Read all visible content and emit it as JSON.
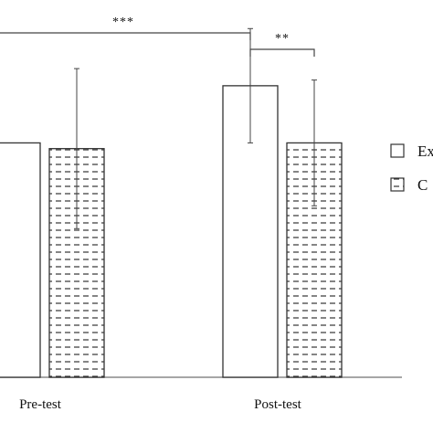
{
  "chart_data": {
    "type": "bar",
    "title": "",
    "xlabel": "",
    "ylabel": "",
    "categories": [
      "Pre-test",
      "Post-test"
    ],
    "series": [
      {
        "name": "Ex",
        "style": "plain",
        "values": [
          3.05,
          3.55
        ],
        "errors": [
          0.0,
          0.5
        ]
      },
      {
        "name": "C",
        "style": "dashed-hatch",
        "values": [
          3.0,
          3.05
        ],
        "errors": [
          0.7,
          0.55
        ]
      }
    ],
    "ylim": [
      1.0,
      4.3
    ],
    "grid": false,
    "legend_position": "right",
    "significance": [
      {
        "label": "***",
        "from": "Pre-test Ex",
        "to": "Post-test Ex"
      },
      {
        "label": "**",
        "from": "Post-test Ex",
        "to": "Post-test C"
      }
    ],
    "colors": {
      "bar_fill": "#ffffff",
      "bar_edge": "#333333",
      "hatch": "#333333",
      "axis": "#888888"
    }
  }
}
